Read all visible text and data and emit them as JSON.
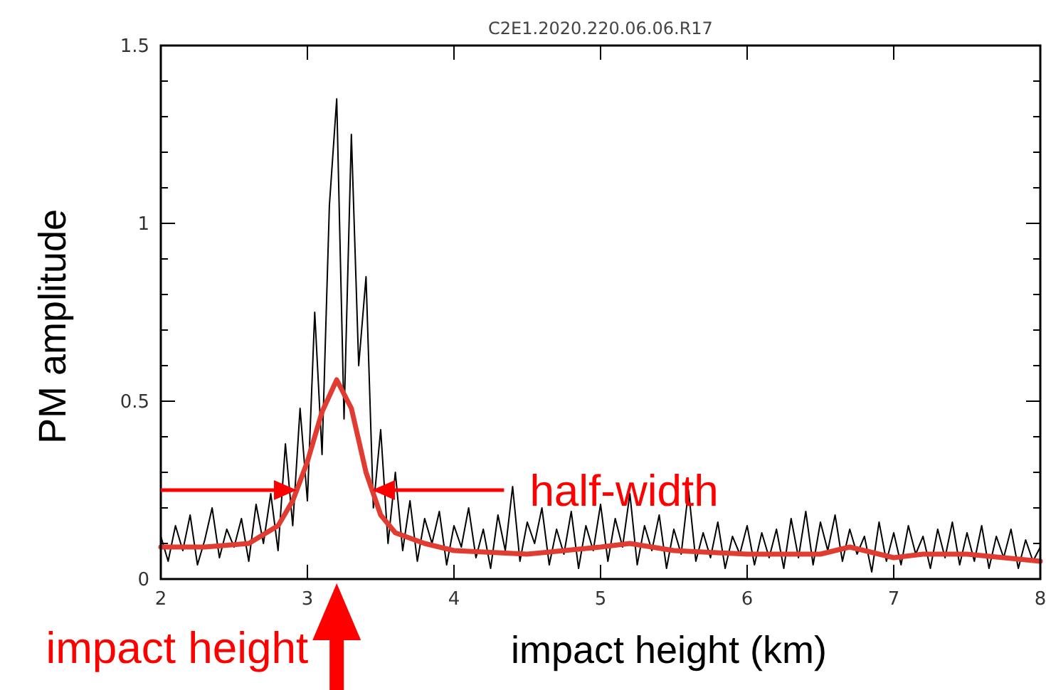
{
  "chart_data": {
    "type": "line",
    "title": "C2E1.2020.220.06.06.R17",
    "xlabel": "impact height (km)",
    "ylabel": "PM amplitude",
    "xlim": [
      2,
      8
    ],
    "xticks": [
      2,
      3,
      4,
      5,
      6,
      7,
      8
    ],
    "ylim": [
      0,
      1.5
    ],
    "yticks": [
      0,
      {
        "value": 0.1,
        "label": null
      },
      {
        "value": 0.2,
        "label": null
      },
      {
        "value": 0.3,
        "label": null
      },
      {
        "value": 0.4,
        "label": null
      },
      0.5,
      {
        "value": 0.6,
        "label": null
      },
      {
        "value": 0.7,
        "label": null
      },
      {
        "value": 0.8,
        "label": null
      },
      {
        "value": 0.9,
        "label": null
      },
      1,
      {
        "value": 1.1,
        "label": null
      },
      {
        "value": 1.2,
        "label": null
      },
      {
        "value": 1.3,
        "label": null
      },
      {
        "value": 1.4,
        "label": null
      },
      1.5
    ],
    "grid": false,
    "marker": "none",
    "line_style": "solid",
    "annotations": [
      {
        "text": "half-width",
        "x": 4.4,
        "y": 0.25
      },
      "impact height"
    ],
    "series": [
      {
        "color": "#000000",
        "x": [
          2,
          2.05,
          2.1,
          2.15,
          2.2,
          2.25,
          2.3,
          2.35,
          2.4,
          2.45,
          2.5,
          2.55,
          2.6,
          2.65,
          2.7,
          2.75,
          2.8,
          2.85,
          2.9,
          2.95,
          3,
          3.05,
          3.1,
          3.15,
          3.2,
          3.25,
          3.3,
          3.35,
          3.4,
          3.45,
          3.5,
          3.55,
          3.6,
          3.65,
          3.7,
          3.75,
          3.8,
          3.85,
          3.9,
          3.95,
          4,
          4.05,
          4.1,
          4.15,
          4.2,
          4.25,
          4.3,
          4.35,
          4.4,
          4.45,
          4.5,
          4.55,
          4.6,
          4.65,
          4.7,
          4.75,
          4.8,
          4.85,
          4.9,
          4.95,
          5,
          5.05,
          5.1,
          5.15,
          5.2,
          5.25,
          5.3,
          5.35,
          5.4,
          5.45,
          5.5,
          5.55,
          5.6,
          5.65,
          5.7,
          5.75,
          5.8,
          5.85,
          5.9,
          5.95,
          6,
          6.05,
          6.1,
          6.15,
          6.2,
          6.25,
          6.3,
          6.35,
          6.4,
          6.45,
          6.5,
          6.55,
          6.6,
          6.65,
          6.7,
          6.75,
          6.8,
          6.85,
          6.9,
          6.95,
          7,
          7.05,
          7.1,
          7.15,
          7.2,
          7.25,
          7.3,
          7.35,
          7.4,
          7.45,
          7.5,
          7.55,
          7.6,
          7.65,
          7.7,
          7.75,
          7.8,
          7.85,
          7.9,
          7.95,
          8
        ],
        "values": [
          0.12,
          0.05,
          0.15,
          0.08,
          0.18,
          0.04,
          0.11,
          0.2,
          0.06,
          0.14,
          0.09,
          0.17,
          0.05,
          0.21,
          0.1,
          0.24,
          0.08,
          0.38,
          0.15,
          0.48,
          0.22,
          0.75,
          0.35,
          1.05,
          1.35,
          0.45,
          1.25,
          0.6,
          0.85,
          0.2,
          0.42,
          0.1,
          0.3,
          0.08,
          0.22,
          0.05,
          0.17,
          0.1,
          0.19,
          0.04,
          0.15,
          0.09,
          0.2,
          0.06,
          0.14,
          0.03,
          0.18,
          0.08,
          0.26,
          0.05,
          0.16,
          0.1,
          0.2,
          0.04,
          0.14,
          0.07,
          0.19,
          0.03,
          0.15,
          0.08,
          0.21,
          0.05,
          0.17,
          0.09,
          0.24,
          0.04,
          0.15,
          0.08,
          0.18,
          0.03,
          0.14,
          0.07,
          0.25,
          0.05,
          0.13,
          0.06,
          0.16,
          0.03,
          0.12,
          0.07,
          0.15,
          0.04,
          0.13,
          0.06,
          0.14,
          0.03,
          0.17,
          0.06,
          0.19,
          0.04,
          0.16,
          0.08,
          0.18,
          0.05,
          0.14,
          0.07,
          0.12,
          0.02,
          0.16,
          0.05,
          0.13,
          0.04,
          0.15,
          0.07,
          0.12,
          0.03,
          0.14,
          0.06,
          0.16,
          0.04,
          0.13,
          0.05,
          0.15,
          0.03,
          0.12,
          0.06,
          0.14,
          0.03,
          0.11,
          0.05,
          0.09
        ]
      },
      {
        "color": "#e03c31",
        "x": [
          2,
          2.3,
          2.6,
          2.8,
          2.9,
          3,
          3.1,
          3.2,
          3.3,
          3.4,
          3.5,
          3.6,
          3.8,
          4,
          4.5,
          5,
          5.2,
          5.5,
          6,
          6.5,
          6.7,
          7,
          7.2,
          7.5,
          8
        ],
        "values": [
          0.09,
          0.09,
          0.1,
          0.15,
          0.22,
          0.33,
          0.47,
          0.56,
          0.48,
          0.3,
          0.18,
          0.13,
          0.1,
          0.08,
          0.07,
          0.09,
          0.1,
          0.08,
          0.07,
          0.07,
          0.09,
          0.06,
          0.07,
          0.07,
          0.05
        ]
      }
    ]
  }
}
